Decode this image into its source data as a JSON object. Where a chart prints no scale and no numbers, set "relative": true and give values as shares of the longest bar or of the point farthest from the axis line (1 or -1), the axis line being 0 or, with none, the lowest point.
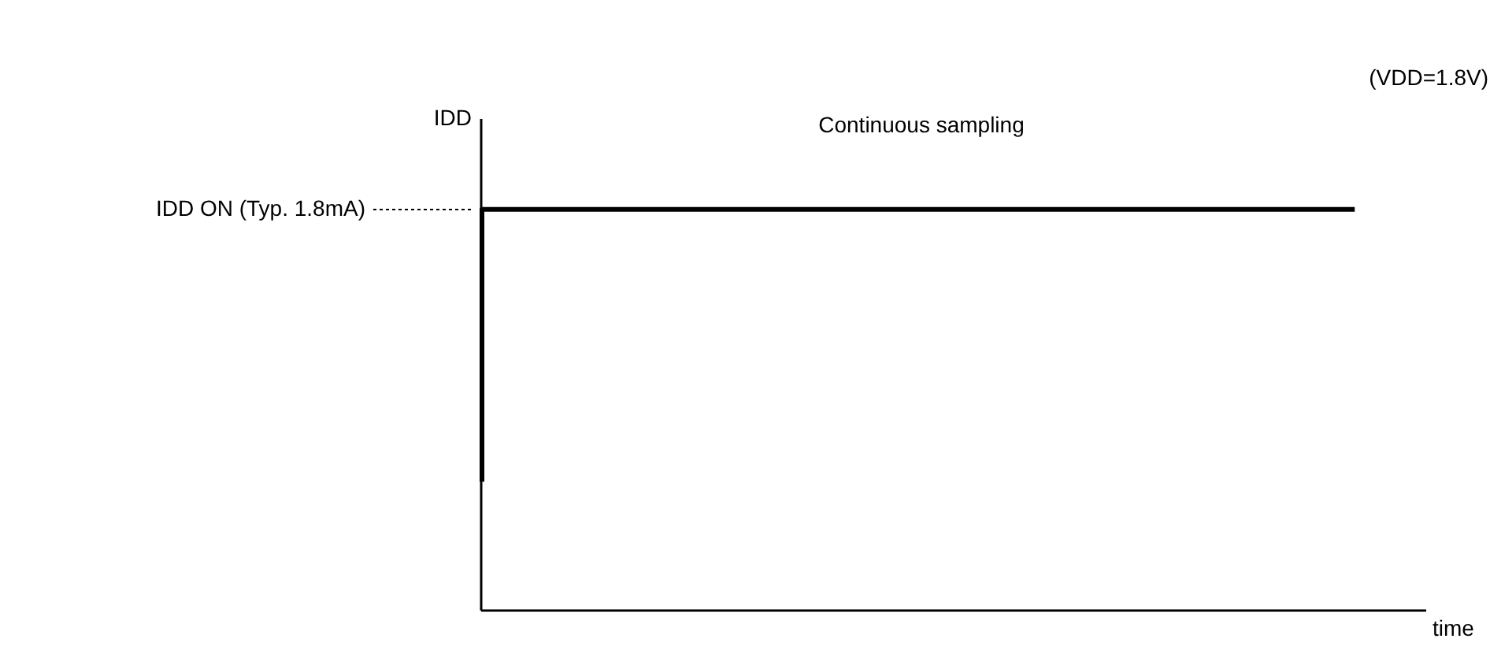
{
  "chart_data": {
    "type": "step",
    "relative": true,
    "xlabel": "time",
    "ylabel": "IDD",
    "categories": [
      null,
      null
    ],
    "series": [
      {
        "color": "#000000",
        "values": [
          0.32,
          1
        ]
      }
    ],
    "annotations": [
      "IDD ON (Typ. 1.8mA)",
      "Continuous sampling",
      "(VDD=1.8V)"
    ]
  }
}
